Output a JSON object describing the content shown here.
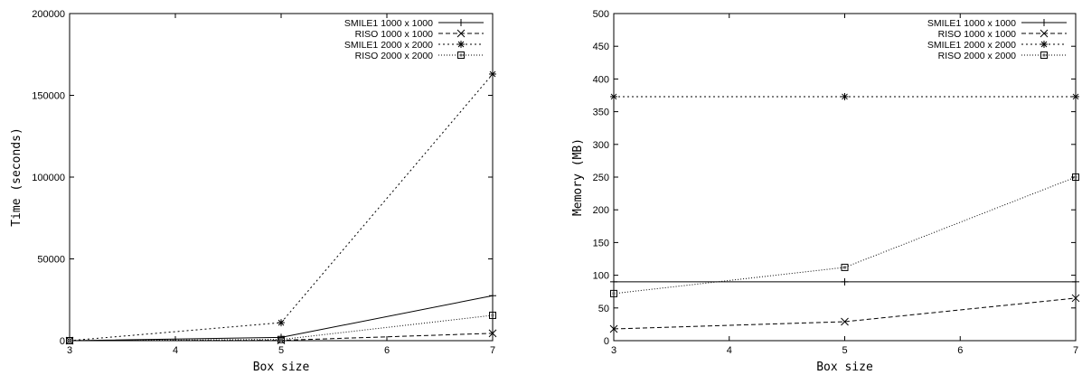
{
  "chart_data": [
    {
      "type": "line",
      "title": "",
      "xlabel": "Box size",
      "ylabel": "Time (seconds)",
      "xlim": [
        3,
        7
      ],
      "ylim": [
        0,
        200000
      ],
      "x_ticks": [
        3,
        4,
        5,
        6,
        7
      ],
      "y_ticks": [
        0,
        50000,
        100000,
        150000,
        200000
      ],
      "grid": false,
      "legend_position": "top-right",
      "series": [
        {
          "name": "SMILE1 1000 x 1000",
          "marker": "plus",
          "dash": "solid",
          "x": [
            3,
            5,
            7
          ],
          "y": [
            0,
            2000,
            27500
          ]
        },
        {
          "name": "RISO 1000 x 1000",
          "marker": "cross",
          "dash": "dashed",
          "x": [
            3,
            5,
            7
          ],
          "y": [
            0,
            200,
            4500
          ]
        },
        {
          "name": "SMILE1 2000 x 2000",
          "marker": "star",
          "dash": "dotted",
          "x": [
            3,
            5,
            7
          ],
          "y": [
            0,
            11000,
            163000
          ]
        },
        {
          "name": "RISO 2000 x 2000",
          "marker": "square",
          "dash": "dotted-fine",
          "x": [
            3,
            5,
            7
          ],
          "y": [
            0,
            700,
            15500
          ]
        }
      ]
    },
    {
      "type": "line",
      "title": "",
      "xlabel": "Box size",
      "ylabel": "Memory (MB)",
      "xlim": [
        3,
        7
      ],
      "ylim": [
        0,
        500
      ],
      "x_ticks": [
        3,
        4,
        5,
        6,
        7
      ],
      "y_ticks": [
        0,
        50,
        100,
        150,
        200,
        250,
        300,
        350,
        400,
        450,
        500
      ],
      "grid": false,
      "legend_position": "top-right",
      "series": [
        {
          "name": "SMILE1 1000 x 1000",
          "marker": "plus",
          "dash": "solid",
          "x": [
            3,
            5,
            7
          ],
          "y": [
            90,
            90,
            90
          ]
        },
        {
          "name": "RISO 1000 x 1000",
          "marker": "cross",
          "dash": "dashed",
          "x": [
            3,
            5,
            7
          ],
          "y": [
            18,
            29,
            65
          ]
        },
        {
          "name": "SMILE1 2000 x 2000",
          "marker": "star",
          "dash": "dotted",
          "x": [
            3,
            5,
            7
          ],
          "y": [
            373,
            373,
            373
          ]
        },
        {
          "name": "RISO 2000 x 2000",
          "marker": "square",
          "dash": "dotted-fine",
          "x": [
            3,
            5,
            7
          ],
          "y": [
            72,
            112,
            250
          ]
        }
      ]
    }
  ]
}
